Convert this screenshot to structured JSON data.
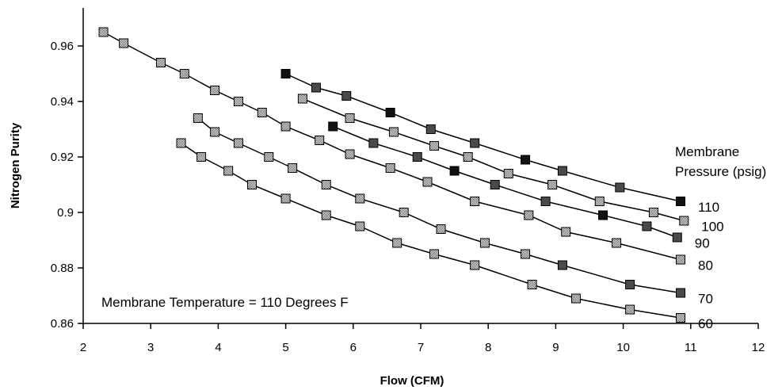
{
  "chart_data": {
    "type": "line",
    "xlabel": "Flow (CFM)",
    "ylabel": "Nitrogen Purity",
    "xlim": [
      2,
      12
    ],
    "ylim": [
      0.86,
      0.97
    ],
    "x_ticks": [
      "2",
      "3",
      "4",
      "5",
      "6",
      "7",
      "8",
      "9",
      "10",
      "11",
      "12"
    ],
    "y_ticks": [
      "0.86",
      "0.88",
      "0.9",
      "0.92",
      "0.94",
      "0.96"
    ],
    "grid": false,
    "legend_title": [
      "Membrane",
      "Pressure (psig)"
    ],
    "annotation": "Membrane Temperature = 110 Degrees F",
    "series": [
      {
        "name": "110",
        "marker": "dark",
        "points": [
          [
            5.0,
            0.95
          ],
          [
            5.45,
            0.945
          ],
          [
            5.9,
            0.942
          ],
          [
            6.55,
            0.936
          ],
          [
            7.15,
            0.93
          ],
          [
            7.8,
            0.925
          ],
          [
            8.55,
            0.919
          ],
          [
            9.1,
            0.915
          ],
          [
            9.95,
            0.909
          ],
          [
            10.85,
            0.904
          ]
        ]
      },
      {
        "name": "100",
        "marker": "light",
        "points": [
          [
            5.25,
            0.941
          ],
          [
            5.95,
            0.934
          ],
          [
            6.6,
            0.929
          ],
          [
            7.2,
            0.924
          ],
          [
            7.7,
            0.92
          ],
          [
            8.3,
            0.914
          ],
          [
            8.95,
            0.91
          ],
          [
            9.65,
            0.904
          ],
          [
            10.45,
            0.9
          ],
          [
            10.9,
            0.897
          ]
        ]
      },
      {
        "name": "90",
        "marker": "dark",
        "points": [
          [
            5.7,
            0.931
          ],
          [
            6.3,
            0.925
          ],
          [
            6.95,
            0.92
          ],
          [
            7.5,
            0.915
          ],
          [
            8.1,
            0.91
          ],
          [
            8.85,
            0.904
          ],
          [
            9.7,
            0.899
          ],
          [
            10.35,
            0.895
          ],
          [
            10.8,
            0.891
          ]
        ]
      },
      {
        "name": "80",
        "marker": "light",
        "points": [
          [
            2.3,
            0.965
          ],
          [
            2.6,
            0.961
          ],
          [
            3.15,
            0.954
          ],
          [
            3.5,
            0.95
          ],
          [
            3.95,
            0.944
          ],
          [
            4.3,
            0.94
          ],
          [
            4.65,
            0.936
          ],
          [
            5.0,
            0.931
          ],
          [
            5.5,
            0.926
          ],
          [
            5.95,
            0.921
          ],
          [
            6.55,
            0.916
          ],
          [
            7.1,
            0.911
          ],
          [
            7.8,
            0.904
          ],
          [
            8.6,
            0.899
          ],
          [
            9.15,
            0.893
          ],
          [
            9.9,
            0.889
          ],
          [
            10.85,
            0.883
          ]
        ]
      },
      {
        "name": "70",
        "marker": "mixed",
        "points": [
          [
            3.7,
            0.934
          ],
          [
            3.95,
            0.929
          ],
          [
            4.3,
            0.925
          ],
          [
            4.75,
            0.92
          ],
          [
            5.1,
            0.916
          ],
          [
            5.6,
            0.91
          ],
          [
            6.1,
            0.905
          ],
          [
            6.75,
            0.9
          ],
          [
            7.3,
            0.894
          ],
          [
            7.95,
            0.889
          ],
          [
            8.55,
            0.885
          ],
          [
            9.1,
            0.881
          ],
          [
            10.1,
            0.874
          ],
          [
            10.85,
            0.871
          ]
        ]
      },
      {
        "name": "60",
        "marker": "light",
        "points": [
          [
            3.45,
            0.925
          ],
          [
            3.75,
            0.92
          ],
          [
            4.15,
            0.915
          ],
          [
            4.5,
            0.91
          ],
          [
            5.0,
            0.905
          ],
          [
            5.6,
            0.899
          ],
          [
            6.1,
            0.895
          ],
          [
            6.65,
            0.889
          ],
          [
            7.2,
            0.885
          ],
          [
            7.8,
            0.881
          ],
          [
            8.65,
            0.874
          ],
          [
            9.3,
            0.869
          ],
          [
            10.1,
            0.865
          ],
          [
            10.85,
            0.862
          ]
        ]
      }
    ]
  },
  "marker_colors": {
    "light": "#c9c9c9",
    "dark": "#4a4a4a",
    "darkest": "#111111",
    "line": "#000000"
  }
}
